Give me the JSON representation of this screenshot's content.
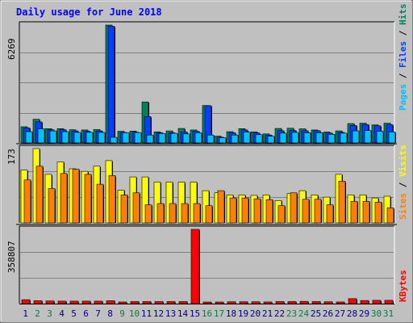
{
  "chart_data": {
    "type": "bar",
    "title": "Daily usage for June 2018",
    "days": [
      "1",
      "2",
      "3",
      "4",
      "5",
      "6",
      "7",
      "8",
      "9",
      "10",
      "11",
      "12",
      "13",
      "14",
      "15",
      "16",
      "17",
      "18",
      "19",
      "20",
      "21",
      "22",
      "23",
      "24",
      "25",
      "26",
      "27",
      "28",
      "29",
      "30",
      "31"
    ],
    "weekend_days": [
      "2",
      "3",
      "9",
      "10",
      "16",
      "17",
      "23",
      "24",
      "30",
      "31"
    ],
    "panels": [
      {
        "name": "top",
        "ymax_label": "6269",
        "ymax": 6269,
        "legend": [
          "Pages",
          "Files",
          "Hits"
        ],
        "series": [
          {
            "name": "Hits",
            "color": "#00805c",
            "values": [
              860,
              1260,
              760,
              760,
              700,
              690,
              710,
              6269,
              620,
              630,
              2180,
              590,
              640,
              770,
              690,
              1990,
              360,
              600,
              760,
              590,
              480,
              770,
              780,
              750,
              690,
              580,
              640,
              1030,
              1050,
              960,
              1050
            ]
          },
          {
            "name": "Files",
            "color": "#0040ff",
            "values": [
              800,
              1120,
              700,
              700,
              640,
              620,
              640,
              6200,
              560,
              570,
              1400,
              540,
              540,
              590,
              620,
              1980,
              310,
              540,
              690,
              530,
              420,
              650,
              660,
              650,
              650,
              530,
              560,
              930,
              980,
              910,
              970
            ]
          },
          {
            "name": "Pages",
            "color": "#00c0ff",
            "values": [
              600,
              750,
              640,
              600,
              560,
              560,
              560,
              300,
              540,
              550,
              420,
              500,
              510,
              480,
              540,
              420,
              280,
              420,
              580,
              440,
              360,
              520,
              560,
              540,
              540,
              460,
              520,
              640,
              660,
              620,
              580
            ]
          }
        ]
      },
      {
        "name": "middle",
        "ymax_label": "173",
        "ymax": 173,
        "legend": [
          "Sites",
          "Visits"
        ],
        "series": [
          {
            "name": "Visits",
            "color": "#ffff00",
            "values": [
              123,
              173,
              113,
              142,
              126,
              120,
              132,
              145,
              76,
              107,
              107,
              95,
              95,
              95,
              95,
              75,
              70,
              65,
              65,
              64,
              65,
              52,
              68,
              75,
              65,
              60,
              113,
              65,
              65,
              58,
              62
            ]
          },
          {
            "name": "Sites",
            "color": "#ff8000",
            "values": [
              100,
              132,
              80,
              115,
              125,
              113,
              90,
              110,
              65,
              70,
              42,
              45,
              45,
              45,
              45,
              40,
              75,
              58,
              58,
              56,
              54,
              40,
              70,
              55,
              55,
              42,
              97,
              50,
              50,
              48,
              35
            ]
          }
        ]
      },
      {
        "name": "bottom",
        "ymax_label": "358807",
        "ymax": 358807,
        "legend": [
          "KBytes"
        ],
        "series": [
          {
            "name": "KBytes",
            "color": "#ff0000",
            "values": [
              19000,
              14000,
              13000,
              12000,
              12000,
              12000,
              12000,
              14000,
              8000,
              10000,
              10000,
              10000,
              10000,
              10000,
              358807,
              5000,
              4000,
              9000,
              9000,
              9000,
              8000,
              10000,
              10000,
              11000,
              10000,
              9000,
              8000,
              24000,
              15000,
              16000,
              16000
            ]
          }
        ]
      }
    ],
    "colors": {
      "title": "#0000ff",
      "weekday_label": "#000080",
      "weekend_label": "#008040",
      "pages": "#00c0ff",
      "files": "#0040ff",
      "hits": "#00805c",
      "sites": "#ff8000",
      "visits": "#ffff00",
      "kbytes": "#ff0000",
      "separator": "#000000"
    }
  }
}
